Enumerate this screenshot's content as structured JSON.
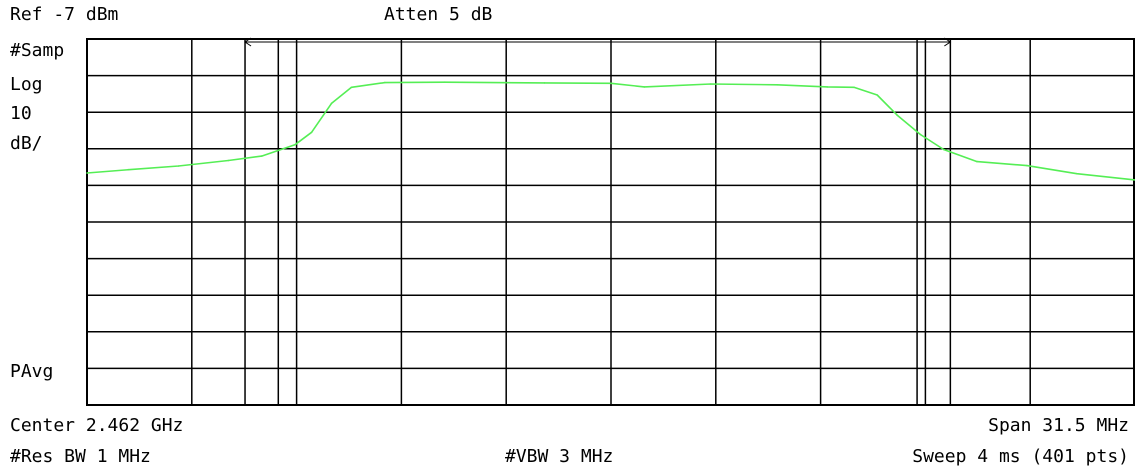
{
  "header": {
    "ref_level": "Ref -7 dBm",
    "attenuation": "Atten 5 dB"
  },
  "left_labels": {
    "detector": "#Samp",
    "scale_type": "Log",
    "scale_value": "10",
    "scale_unit": "dB/",
    "averaging": "PAvg"
  },
  "footer": {
    "center": "Center 2.462 GHz",
    "span": "Span 31.5 MHz",
    "res_bw": "#Res BW 1 MHz",
    "vbw": "#VBW 3 MHz",
    "sweep": "Sweep 4 ms (401 pts)"
  },
  "colors": {
    "trace": "#55ee55",
    "grid": "#000000",
    "background": "#ffffff"
  },
  "chart_data": {
    "type": "line",
    "x_unit": "MHz offset from center",
    "xlim": [
      -15.75,
      15.75
    ],
    "ylim": [
      -107,
      -7
    ],
    "y_scale_db_per_div": 10,
    "grid": true,
    "x_divisions": 10,
    "y_divisions": 10,
    "marker_lines_x": [
      -11.0,
      -10.0,
      9.2,
      10.2
    ],
    "series": [
      {
        "x": [
          -15.75,
          -14.5,
          -13.0,
          -11.5,
          -10.5,
          -9.5,
          -9.0,
          -8.4,
          -7.8,
          -6.8,
          -5.0,
          -2.0,
          0.0,
          1.0,
          3.0,
          5.0,
          6.5,
          7.3,
          8.0,
          8.6,
          9.3,
          10.0,
          11.0,
          12.5,
          14.0,
          15.75
        ],
        "y": [
          -43.6,
          -42.7,
          -41.7,
          -40.2,
          -39.0,
          -35.9,
          -32.5,
          -24.6,
          -20.2,
          -18.9,
          -18.8,
          -19.0,
          -19.1,
          -20.1,
          -19.3,
          -19.5,
          -20.1,
          -20.2,
          -22.3,
          -27.8,
          -33.1,
          -37.2,
          -40.5,
          -41.6,
          -43.8,
          -45.5
        ]
      }
    ]
  }
}
